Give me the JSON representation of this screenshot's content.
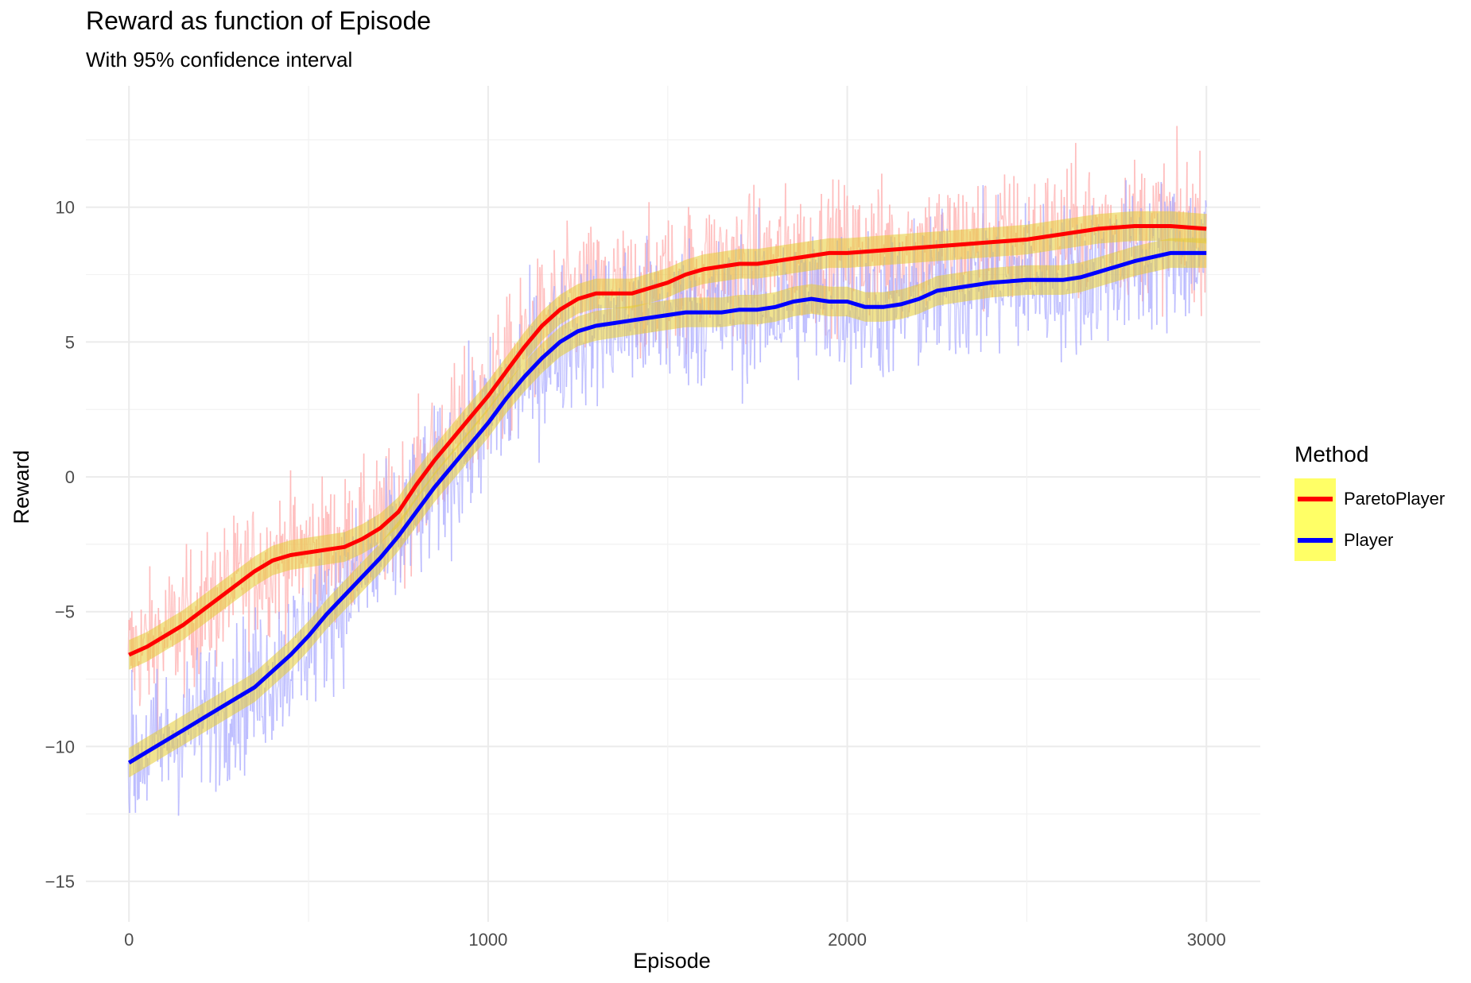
{
  "chart_data": {
    "type": "line",
    "title": "Reward as function of Episode",
    "subtitle": "With 95% confidence interval",
    "xlabel": "Episode",
    "ylabel": "Reward",
    "xlim": [
      -120,
      3150
    ],
    "ylim": [
      -16.5,
      14.5
    ],
    "x_ticks": [
      0,
      1000,
      2000,
      3000
    ],
    "x_tick_labels": [
      "0",
      "1000",
      "2000",
      "3000"
    ],
    "y_ticks": [
      -15,
      -10,
      -5,
      0,
      5,
      10
    ],
    "y_tick_labels": [
      "−15",
      "−10",
      "−5",
      "0",
      "5",
      "10"
    ],
    "grid": true,
    "legend_title": "Method",
    "legend_position": "right",
    "ribbon_color": "#e6cc33",
    "legend_key_fill": "#ffff66",
    "series": [
      {
        "name": "ParetoPlayer",
        "color": "#ff0000",
        "raw_color": "#ffaaaa",
        "x": [
          0,
          50,
          100,
          150,
          200,
          250,
          300,
          350,
          400,
          450,
          500,
          550,
          600,
          650,
          700,
          750,
          800,
          850,
          900,
          950,
          1000,
          1050,
          1100,
          1150,
          1200,
          1250,
          1300,
          1350,
          1400,
          1450,
          1500,
          1550,
          1600,
          1650,
          1700,
          1750,
          1800,
          1850,
          1900,
          1950,
          2000,
          2100,
          2200,
          2300,
          2400,
          2500,
          2600,
          2700,
          2800,
          2900,
          3000
        ],
        "values": [
          -6.6,
          -6.3,
          -5.9,
          -5.5,
          -5.0,
          -4.5,
          -4.0,
          -3.5,
          -3.1,
          -2.9,
          -2.8,
          -2.7,
          -2.6,
          -2.3,
          -1.9,
          -1.3,
          -0.3,
          0.6,
          1.4,
          2.2,
          3.0,
          3.9,
          4.8,
          5.6,
          6.2,
          6.6,
          6.8,
          6.8,
          6.8,
          7.0,
          7.2,
          7.5,
          7.7,
          7.8,
          7.9,
          7.9,
          8.0,
          8.1,
          8.2,
          8.3,
          8.3,
          8.4,
          8.5,
          8.6,
          8.7,
          8.8,
          9.0,
          9.2,
          9.3,
          9.3,
          9.2
        ],
        "ci_halfwidth": 0.55,
        "spread": 2.2
      },
      {
        "name": "Player",
        "color": "#0000ff",
        "raw_color": "#aaaaff",
        "x": [
          0,
          50,
          100,
          150,
          200,
          250,
          300,
          350,
          400,
          450,
          500,
          550,
          600,
          650,
          700,
          750,
          800,
          850,
          900,
          950,
          1000,
          1050,
          1100,
          1150,
          1200,
          1250,
          1300,
          1350,
          1400,
          1450,
          1500,
          1550,
          1600,
          1650,
          1700,
          1750,
          1800,
          1850,
          1900,
          1950,
          2000,
          2050,
          2100,
          2150,
          2200,
          2250,
          2300,
          2400,
          2500,
          2550,
          2600,
          2650,
          2700,
          2800,
          2900,
          3000
        ],
        "values": [
          -10.6,
          -10.2,
          -9.8,
          -9.4,
          -9.0,
          -8.6,
          -8.2,
          -7.8,
          -7.2,
          -6.6,
          -5.9,
          -5.1,
          -4.4,
          -3.7,
          -3.0,
          -2.2,
          -1.3,
          -0.4,
          0.4,
          1.2,
          2.0,
          2.9,
          3.7,
          4.4,
          5.0,
          5.4,
          5.6,
          5.7,
          5.8,
          5.9,
          6.0,
          6.1,
          6.1,
          6.1,
          6.2,
          6.2,
          6.3,
          6.5,
          6.6,
          6.5,
          6.5,
          6.3,
          6.3,
          6.4,
          6.6,
          6.9,
          7.0,
          7.2,
          7.3,
          7.3,
          7.3,
          7.4,
          7.6,
          8.0,
          8.3,
          8.3
        ],
        "ci_halfwidth": 0.55,
        "spread": 2.4
      }
    ]
  }
}
